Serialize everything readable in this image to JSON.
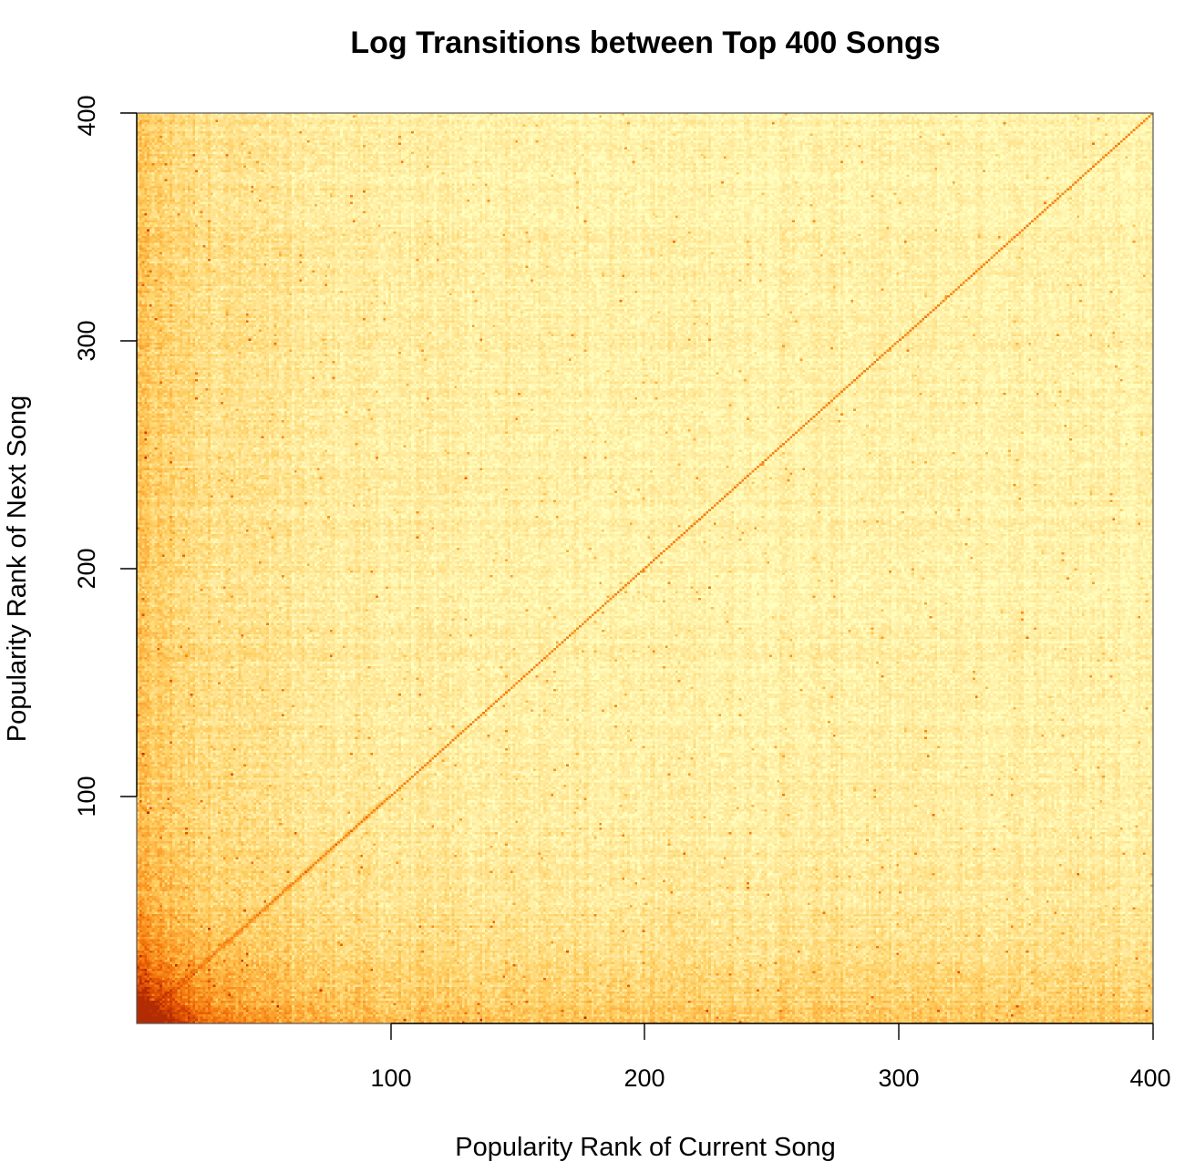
{
  "chart_data": {
    "type": "heatmap",
    "title": "Log Transitions between Top 400 Songs",
    "xlabel": "Popularity Rank of Current Song",
    "ylabel": "Popularity Rank of Next Song",
    "xlim": [
      1,
      400
    ],
    "ylim": [
      1,
      400
    ],
    "x_ticks": [
      100,
      200,
      300,
      400
    ],
    "y_ticks": [
      100,
      200,
      300,
      400
    ],
    "x_tick_labels": [
      "100",
      "200",
      "300",
      "400"
    ],
    "y_tick_labels": [
      "100",
      "200",
      "300",
      "400"
    ],
    "grid": false,
    "legend": "none",
    "colormap": [
      "#FFFFBF",
      "#FFF0A8",
      "#FFE08A",
      "#FECC5C",
      "#FDAE3D",
      "#F98E1A",
      "#EE6A0A",
      "#D94801",
      "#B22C03"
    ],
    "colors": {
      "low": "#FFFFC8",
      "mid": "#FDBE5A",
      "high": "#C83200",
      "diagonal": "#F08C14"
    },
    "features": {
      "main_diagonal": "high intensity along next = current",
      "low_rank_corner": "highest intensity near rank 1 on both axes",
      "left_band_ranks": [
        1,
        40
      ],
      "bottom_band_ranks": [
        1,
        40
      ]
    }
  }
}
